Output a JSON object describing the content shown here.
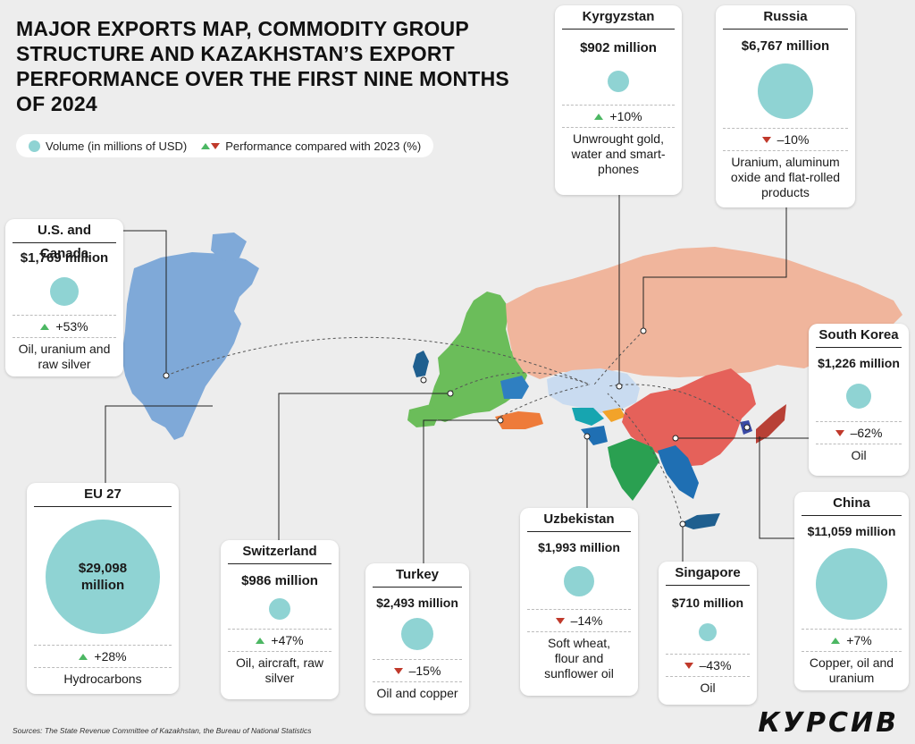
{
  "title": "MAJOR EXPORTS MAP, COMMODITY GROUP STRUCTURE AND KAZAKHSTAN’S EXPORT PERFORMANCE OVER THE FIRST NINE MONTHS OF 2024",
  "legend": {
    "volume_label": "Volume (in millions of USD)",
    "performance_label": "Performance compared with 2023 (%)"
  },
  "colors": {
    "bubble": "#8fd3d3",
    "up": "#4cb763",
    "down": "#c0392b",
    "north_america": "#7fa9d8",
    "europe": "#6bbd5a",
    "russia": "#f0b59c",
    "china": "#e5615a",
    "kazakhstan": "#c9dbf0",
    "turkey": "#ee7b3a",
    "india": "#2aa051",
    "southeast_asia": "#1f6fb3"
  },
  "countries": [
    {
      "id": "us-canada",
      "name": "U.S. and Canada",
      "volume": "$1,769 million",
      "direction": "up",
      "change": "+53%",
      "products": "Oil, uranium and raw silver"
    },
    {
      "id": "kyrgyzstan",
      "name": "Kyrgyzstan",
      "volume": "$902 million",
      "direction": "up",
      "change": "+10%",
      "products": "Unwrought gold, water and smart-phones"
    },
    {
      "id": "russia",
      "name": "Russia",
      "volume": "$6,767 million",
      "direction": "down",
      "change": "–10%",
      "products": "Uranium, aluminum oxide and flat-rolled products"
    },
    {
      "id": "south-korea",
      "name": "South Korea",
      "volume": "$1,226 million",
      "direction": "down",
      "change": "–62%",
      "products": "Oil"
    },
    {
      "id": "eu27",
      "name": "EU 27",
      "volume": "$29,098 million",
      "direction": "up",
      "change": "+28%",
      "products": "Hydrocarbons"
    },
    {
      "id": "switzerland",
      "name": "Switzerland",
      "volume": "$986 million",
      "direction": "up",
      "change": "+47%",
      "products": "Oil, aircraft, raw silver"
    },
    {
      "id": "turkey",
      "name": "Turkey",
      "volume": "$2,493 million",
      "direction": "down",
      "change": "–15%",
      "products": "Oil and copper"
    },
    {
      "id": "uzbekistan",
      "name": "Uzbekistan",
      "volume": "$1,993 million",
      "direction": "down",
      "change": "–14%",
      "products": "Soft wheat, flour and sunflower oil"
    },
    {
      "id": "singapore",
      "name": "Singapore",
      "volume": "$710 million",
      "direction": "down",
      "change": "–43%",
      "products": "Oil"
    },
    {
      "id": "china",
      "name": "China",
      "volume": "$11,059 million",
      "direction": "up",
      "change": "+7%",
      "products": "Copper, oil and uranium"
    }
  ],
  "source": "Sources: The State Revenue Committee of Kazakhstan, the Bureau of National Statistics",
  "logo": "КУРСИВ"
}
